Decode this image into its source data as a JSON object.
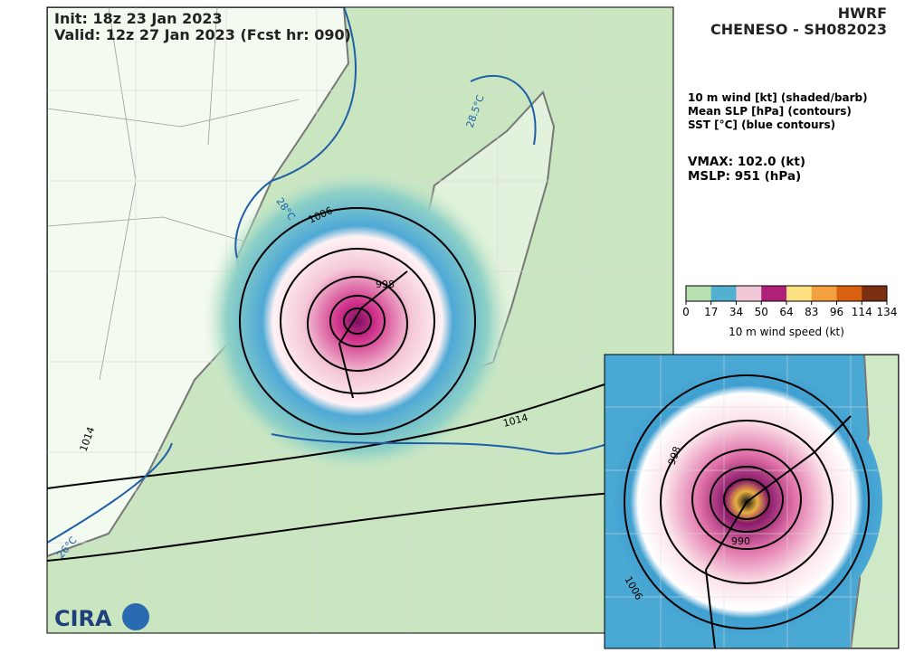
{
  "header": {
    "init": "Init:   18z 23 Jan 2023",
    "valid": "Valid: 12z 27 Jan 2023 (Fcst hr: 090)",
    "model": "HWRF",
    "storm": "CHENESO - SH082023"
  },
  "legend": {
    "lines": [
      "10 m wind [kt] (shaded/barb)",
      "Mean SLP [hPa] (contours)",
      "SST [°C] (blue contours)"
    ],
    "vmax": "VMAX: 102.0 (kt)",
    "mslp": "MSLP:  951 (hPa)"
  },
  "colorbar": {
    "ticks": [
      0,
      17,
      34,
      50,
      64,
      83,
      96,
      114,
      134
    ],
    "label": "10 m wind speed (kt)"
  },
  "contour_labels": [
    "1006",
    "998",
    "1014",
    "1014"
  ],
  "sst_labels": [
    "28.5°C",
    "28°C",
    "26°C"
  ],
  "inset_labels": [
    "998",
    "990",
    "1006"
  ],
  "logo": "CIRA"
}
